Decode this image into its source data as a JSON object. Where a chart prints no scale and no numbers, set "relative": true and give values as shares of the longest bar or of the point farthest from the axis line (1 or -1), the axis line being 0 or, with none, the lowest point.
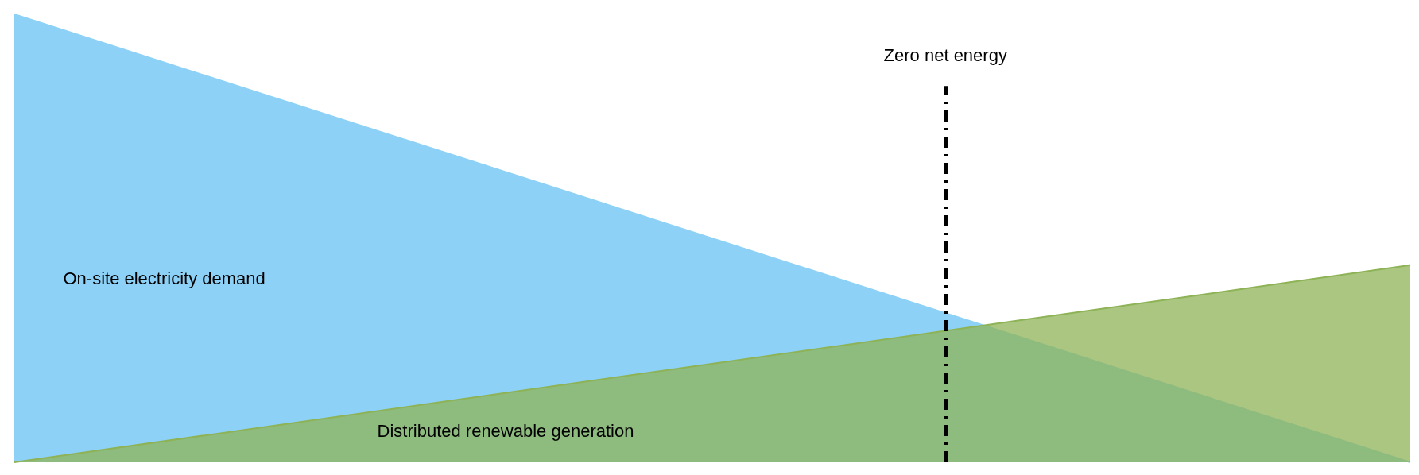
{
  "chart_data": {
    "type": "area",
    "relative": true,
    "categories": [
      null,
      null
    ],
    "legend": false,
    "marker": "none",
    "series": [
      {
        "name": "On-site electricity demand",
        "color": "#8ed1f7",
        "values": [
          1,
          0
        ]
      },
      {
        "name": "Distributed renewable generation",
        "color": "#8db356",
        "values": [
          0,
          0.44
        ]
      }
    ],
    "annotations": [
      "Zero net energy"
    ]
  }
}
